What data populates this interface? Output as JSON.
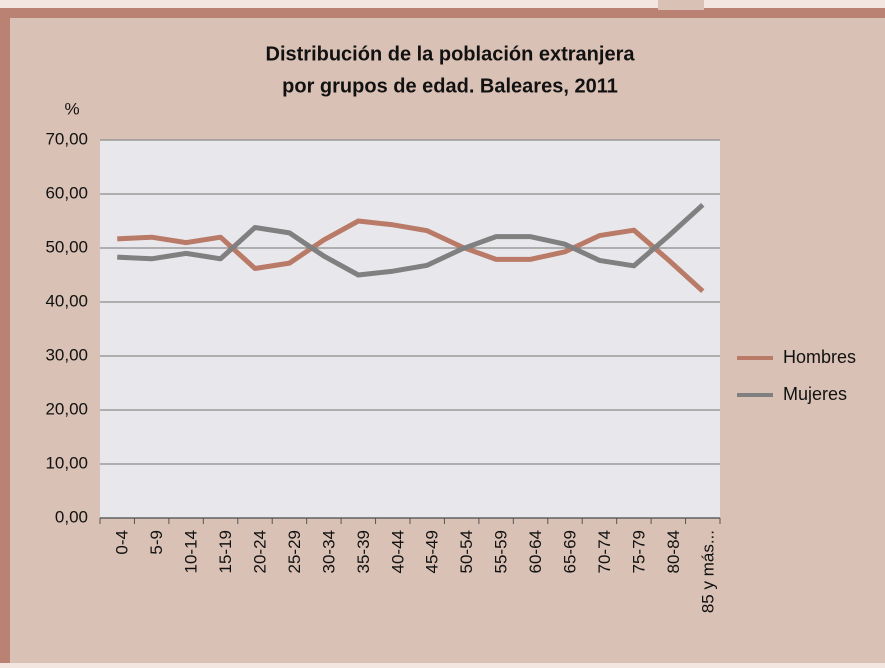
{
  "chart_data": {
    "type": "line",
    "title": "Distribución de la población extranjera",
    "subtitle": "por grupos de edad. Baleares, 2011",
    "y_label": "%",
    "categories": [
      "0-4",
      "5-9",
      "10-14",
      "15-19",
      "20-24",
      "25-29",
      "30-34",
      "35-39",
      "40-44",
      "45-49",
      "50-54",
      "55-59",
      "60-64",
      "65-69",
      "70-74",
      "75-79",
      "80-84",
      "85 y más..."
    ],
    "series": [
      {
        "name": "Hombres",
        "color": "#b97a68",
        "values": [
          51.7,
          52,
          51,
          52,
          46.2,
          47.2,
          51.5,
          55,
          54.3,
          53.2,
          50.2,
          47.9,
          47.9,
          49.3,
          52.3,
          53.3,
          47.8,
          42
        ]
      },
      {
        "name": "Mujeres",
        "color": "#808080",
        "values": [
          48.3,
          48,
          49,
          48,
          53.8,
          52.8,
          48.5,
          45,
          45.7,
          46.8,
          49.8,
          52.1,
          52.1,
          50.7,
          47.7,
          46.7,
          52.2,
          58
        ]
      }
    ],
    "ylim": [
      0,
      70
    ],
    "yticks": [
      {
        "value": 0,
        "label": "0,00"
      },
      {
        "value": 10,
        "label": "10,00"
      },
      {
        "value": 20,
        "label": "20,00"
      },
      {
        "value": 30,
        "label": "30,00"
      },
      {
        "value": 40,
        "label": "40,00"
      },
      {
        "value": 50,
        "label": "50,00"
      },
      {
        "value": 60,
        "label": "60,00"
      },
      {
        "value": 70,
        "label": "70,00"
      }
    ],
    "grid": true,
    "legend": "right"
  }
}
